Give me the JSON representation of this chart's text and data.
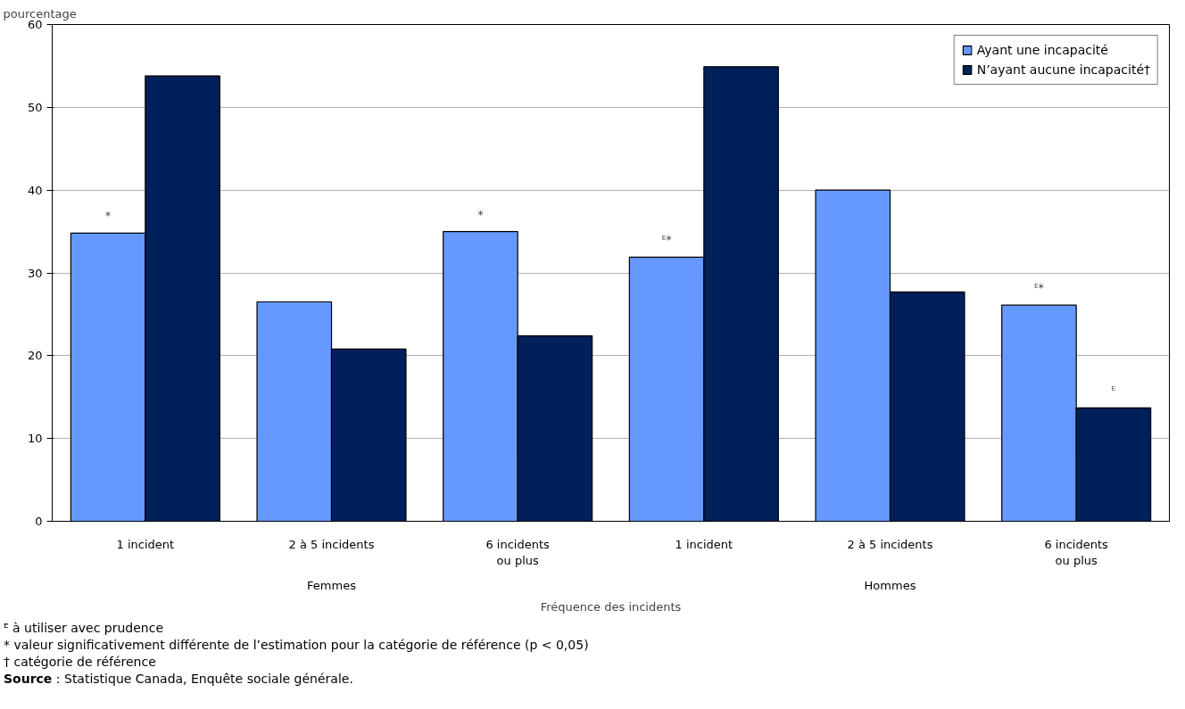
{
  "chart_data": {
    "type": "bar",
    "xlabel": "Fréquence des incidents",
    "ylabel": "pourcentage",
    "categories": [
      "1 incident",
      "2 à 5 incidents",
      "6 incidents ou plus",
      "1 incident",
      "2 à 5 incidents",
      "6 incidents ou plus"
    ],
    "series": [
      {
        "name": "Ayant une incapacité",
        "color": "#6699ff",
        "values": [
          34.8,
          26.5,
          35.0,
          31.9,
          40.0,
          26.1
        ],
        "value_labels": [
          "*",
          null,
          "*",
          "ᴱ*",
          null,
          "ᴱ*"
        ]
      },
      {
        "name": "N’ayant aucune incapacité†",
        "color": "#00205b",
        "values": [
          53.8,
          20.8,
          22.4,
          54.9,
          27.7,
          13.7
        ],
        "value_labels": [
          null,
          null,
          null,
          null,
          null,
          "ᴱ"
        ]
      }
    ],
    "ylim": [
      0,
      60
    ],
    "yticks": [
      0,
      10,
      20,
      30,
      40,
      50,
      60
    ],
    "grid": "y",
    "legend": "top right",
    "annotations": [
      "Femmes",
      "Hommes",
      "ᴱ à utiliser avec prudence",
      "* valeur significativement différente de l’estimation pour la catégorie de référence (p < 0,05)",
      "† catégorie de référence",
      "Source : Statistique Canada, Enquête sociale générale."
    ]
  }
}
